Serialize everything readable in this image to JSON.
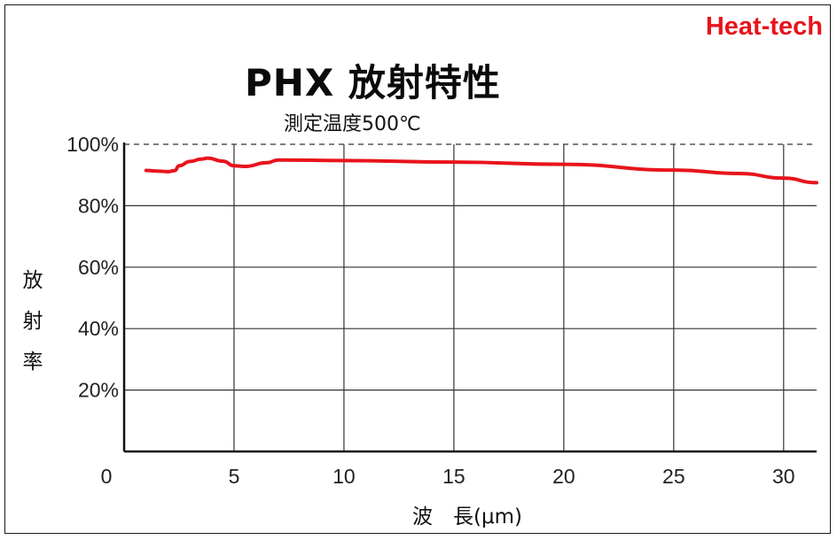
{
  "brand": "Heat-tech",
  "chart_data": {
    "type": "line",
    "title": "PHX 放射特性",
    "subtitle": "測定温度500℃",
    "ylabel": "放射率",
    "ylabel_chars": [
      "放",
      "射",
      "率"
    ],
    "xlabel": "波　長(μm)",
    "xlim": [
      0,
      31.5
    ],
    "ylim": [
      0,
      100
    ],
    "x_ticks": [
      0,
      5,
      10,
      15,
      20,
      25,
      30
    ],
    "x_tick_labels": [
      "0",
      "5",
      "10",
      "15",
      "20",
      "25",
      "30"
    ],
    "y_ticks": [
      20,
      40,
      60,
      80,
      100
    ],
    "y_tick_labels": [
      "20%",
      "40%",
      "60%",
      "80%",
      "100%"
    ],
    "grid": true,
    "reference_line": 100,
    "series": [
      {
        "color": "#e8141c",
        "x": [
          1.0,
          1.5,
          2.0,
          2.3,
          2.5,
          3.0,
          3.5,
          3.8,
          4.5,
          5.0,
          5.5,
          6.5,
          7.0,
          10.0,
          15.0,
          20.0,
          25.0,
          28.0,
          30.0,
          31.5
        ],
        "y": [
          91.5,
          91.3,
          91.1,
          91.4,
          93.0,
          94.4,
          95.2,
          95.5,
          94.5,
          93.0,
          92.8,
          94.0,
          94.9,
          94.7,
          94.2,
          93.5,
          91.6,
          90.5,
          89.0,
          87.5
        ]
      }
    ]
  }
}
